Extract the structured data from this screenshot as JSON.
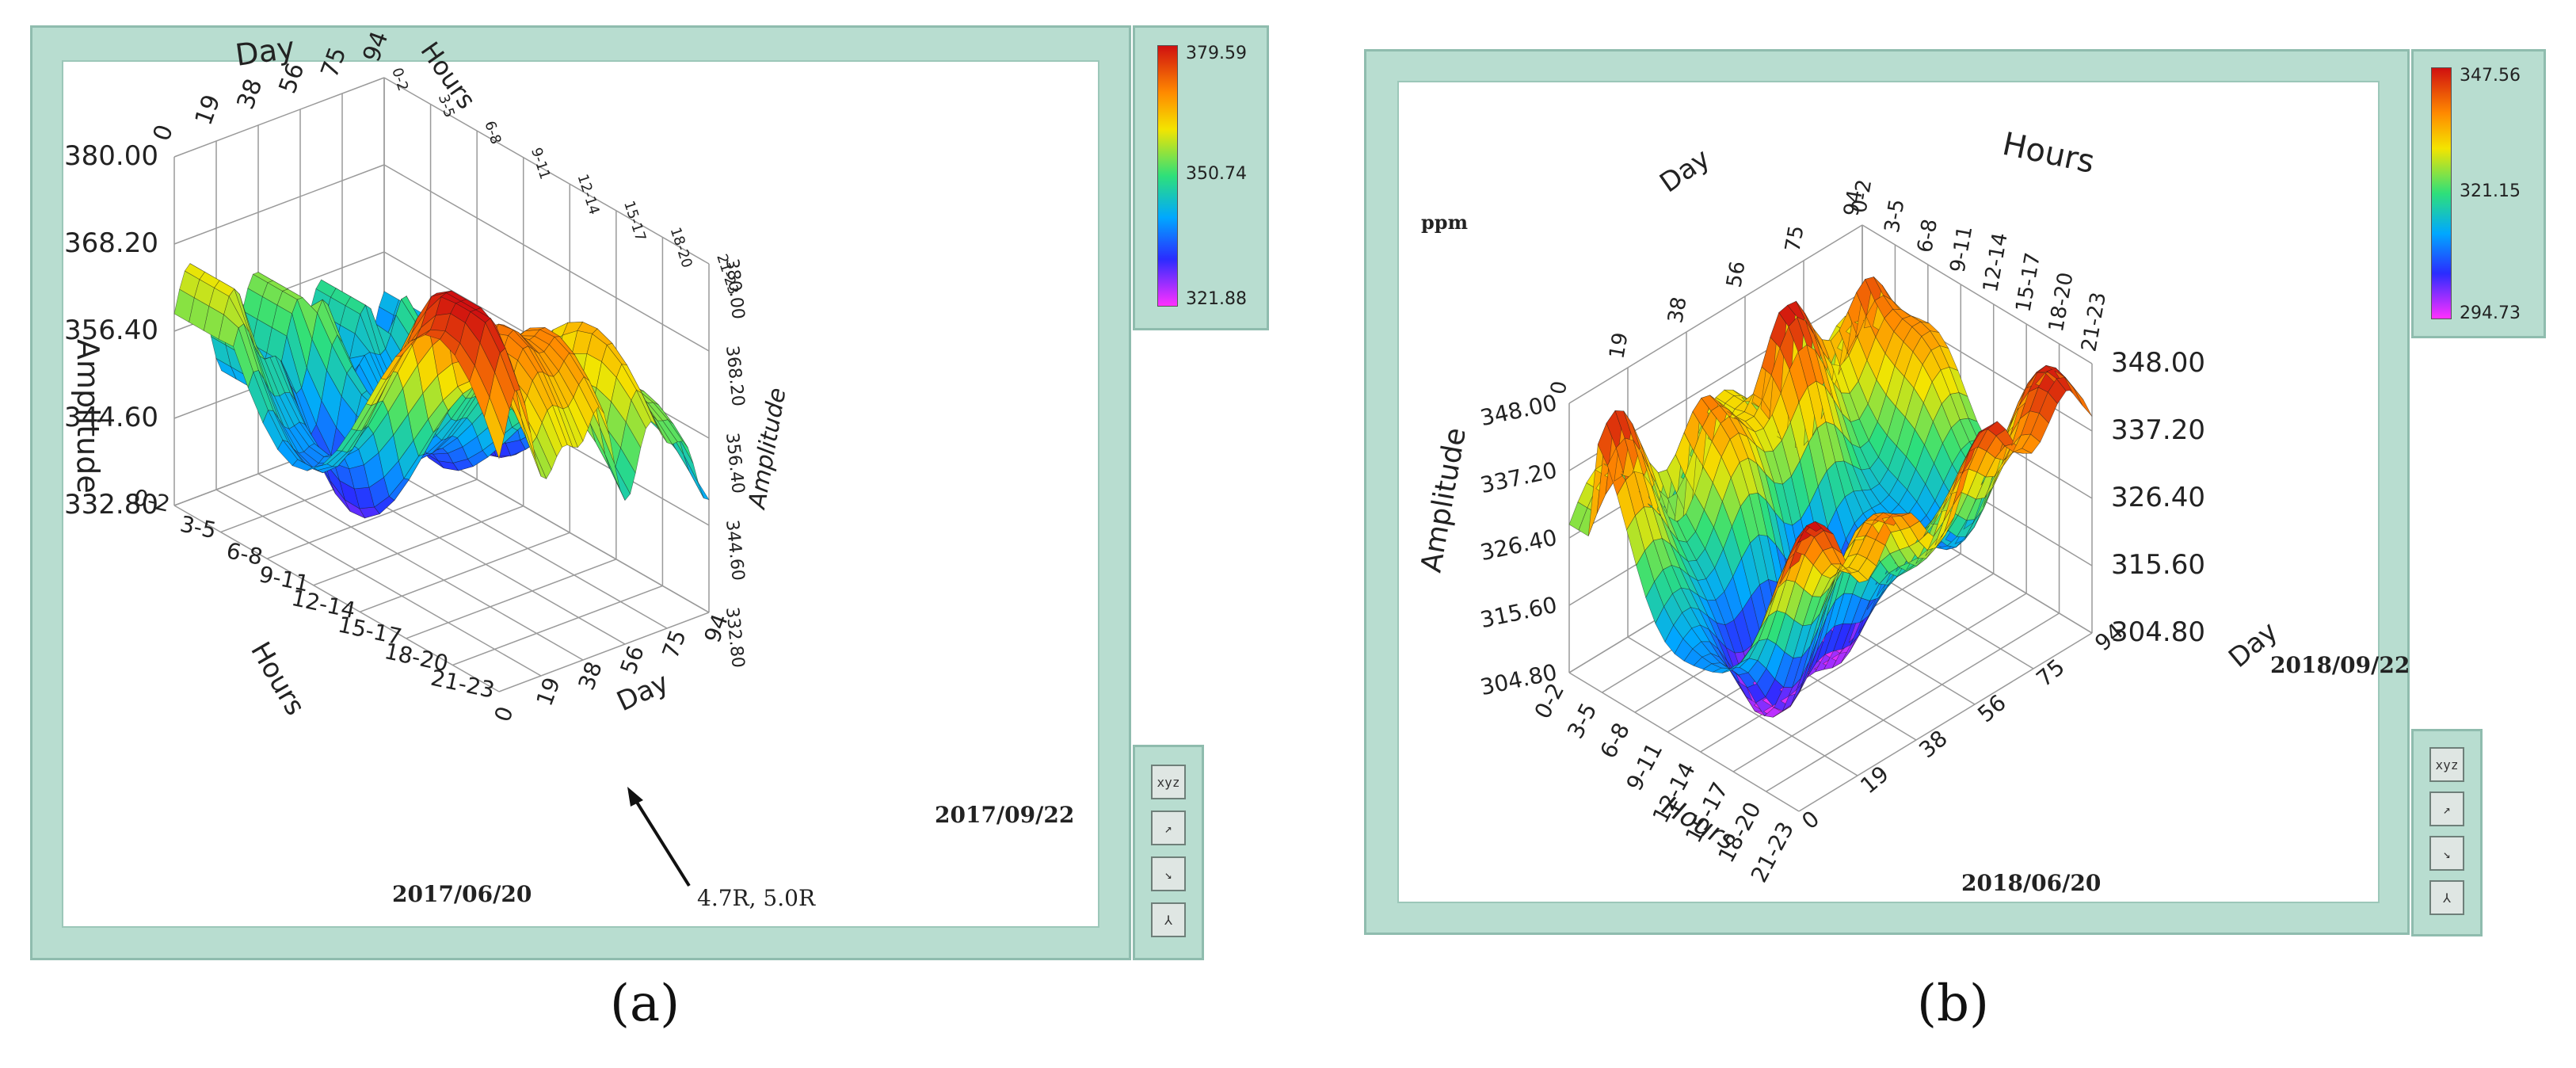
{
  "chart_data": [
    {
      "type": "surface",
      "caption": "(a)",
      "axes": {
        "day_label": "Day",
        "hours_label": "Hours",
        "amplitude_label": "Amplitude",
        "day_ticks": [
          "0",
          "19",
          "38",
          "56",
          "75",
          "94"
        ],
        "hours_ticks": [
          "0-2",
          "3-5",
          "6-8",
          "9-11",
          "12-14",
          "15-17",
          "18-20",
          "21-23"
        ],
        "amplitude_ticks": [
          "332.80",
          "344.60",
          "356.40",
          "368.20",
          "380.00"
        ]
      },
      "start_date": "2017/06/20",
      "end_date": "2017/09/22",
      "annotation": "4.7R, 5.0R",
      "colorbar": {
        "max": "379.59",
        "mid": "350.74",
        "min": "321.88"
      },
      "zlim": [
        332.8,
        380.0
      ]
    },
    {
      "type": "surface",
      "caption": "(b)",
      "axes": {
        "day_label": "Day",
        "hours_label": "Hours",
        "amplitude_label": "Amplitude",
        "unit": "ppm",
        "day_ticks": [
          "0",
          "19",
          "38",
          "56",
          "75",
          "94"
        ],
        "hours_ticks": [
          "0-2",
          "3-5",
          "6-8",
          "9-11",
          "12-14",
          "15-17",
          "18-20",
          "21-23"
        ],
        "amplitude_ticks": [
          "304.80",
          "315.60",
          "326.40",
          "337.20",
          "348.00"
        ]
      },
      "start_date": "2018/06/20",
      "end_date": "2018/09/22",
      "colorbar": {
        "max": "347.56",
        "mid": "321.15",
        "min": "294.73"
      },
      "zlim": [
        304.8,
        348.0
      ]
    }
  ],
  "colors": {
    "panel": "#b8ddd0",
    "border": "#8fbcae"
  }
}
